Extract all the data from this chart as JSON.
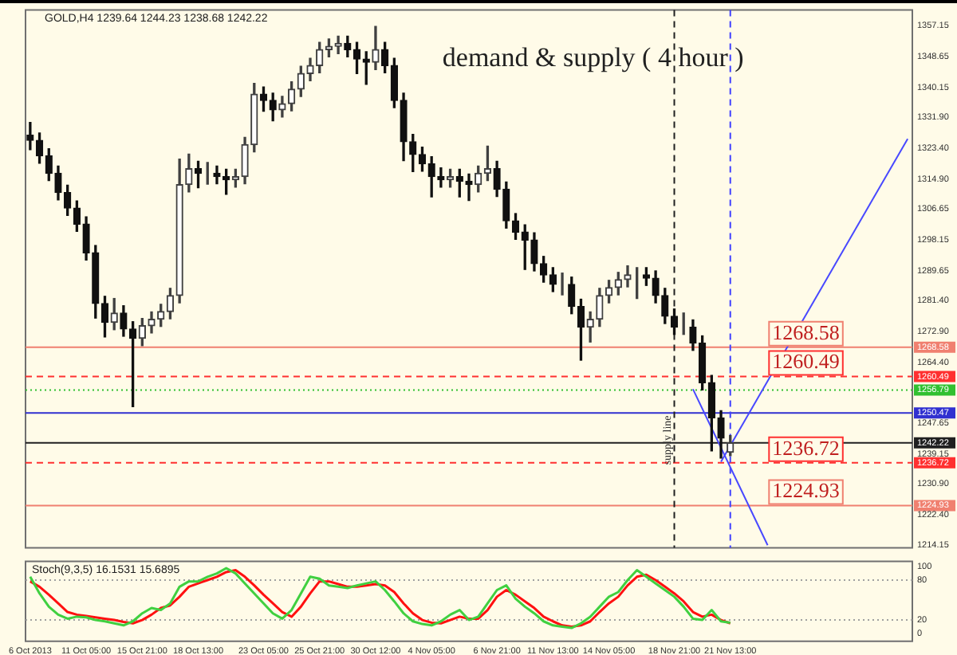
{
  "chart_data": [
    {
      "type": "candlestick",
      "title": "demand & supply ( 4 hour )",
      "annotations": [
        "GOLD,H4 1239.64 1244.23 1238.68 1242.22"
      ],
      "categories": [
        "6 Oct 2013",
        null,
        null,
        null,
        null,
        null,
        "11 Oct 05:00",
        null,
        null,
        null,
        null,
        null,
        "15 Oct 21:00",
        null,
        null,
        null,
        null,
        null,
        "18 Oct 13:00",
        null,
        null,
        null,
        null,
        null,
        null,
        "23 Oct 05:00",
        null,
        null,
        null,
        null,
        null,
        "25 Oct 21:00",
        null,
        null,
        null,
        null,
        null,
        "30 Oct 12:00",
        null,
        null,
        null,
        null,
        null,
        "4 Nov 05:00",
        null,
        null,
        null,
        null,
        null,
        null,
        "6 Nov 21:00",
        null,
        null,
        null,
        null,
        null,
        "11 Nov 13:00",
        null,
        null,
        null,
        null,
        null,
        "14 Nov 05:00",
        null,
        null,
        null,
        null,
        null,
        null,
        "18 Nov 21:00",
        null,
        null,
        null,
        null,
        null,
        "21 Nov 13:00",
        null,
        null,
        null,
        null,
        null,
        null,
        null,
        null,
        null,
        null,
        null,
        null,
        null,
        null,
        null,
        null,
        null,
        null,
        null
      ],
      "ohlc": [
        [
          1327.0,
          1330.5,
          1323.0,
          1325.6
        ],
        [
          1325.6,
          1327.6,
          1319.3,
          1321.3
        ],
        [
          1321.3,
          1323.3,
          1314.5,
          1316.5
        ],
        [
          1316.5,
          1318.5,
          1309.2,
          1311.2
        ],
        [
          1311.2,
          1313.2,
          1304.9,
          1306.9
        ],
        [
          1306.9,
          1308.9,
          1300.5,
          1302.5
        ],
        [
          1302.5,
          1304.5,
          1292.6,
          1294.6
        ],
        [
          1294.6,
          1296.6,
          1276.6,
          1280.6
        ],
        [
          1280.6,
          1282.6,
          1271.4,
          1275.4
        ],
        [
          1275.4,
          1282.0,
          1273.4,
          1278.0
        ],
        [
          1278.0,
          1280.0,
          1271.6,
          1273.6
        ],
        [
          1273.6,
          1275.6,
          1252.2,
          1271.0
        ],
        [
          1271.0,
          1276.5,
          1269.0,
          1274.5
        ],
        [
          1274.5,
          1278.3,
          1272.5,
          1276.3
        ],
        [
          1276.3,
          1280.4,
          1274.3,
          1278.4
        ],
        [
          1278.4,
          1284.8,
          1276.4,
          1282.8
        ],
        [
          1282.8,
          1320.4,
          1280.8,
          1313.4
        ],
        [
          1313.4,
          1321.8,
          1311.4,
          1317.8
        ],
        [
          1317.8,
          1319.8,
          1312.5,
          1316.5
        ],
        [
          1316.5,
          1319.5,
          1313.5,
          1316.5
        ],
        [
          1316.5,
          1318.5,
          1313.6,
          1315.6
        ],
        [
          1315.6,
          1317.6,
          1310.7,
          1314.7
        ],
        [
          1314.7,
          1317.6,
          1312.7,
          1315.6
        ],
        [
          1315.6,
          1326.4,
          1313.6,
          1324.4
        ],
        [
          1324.4,
          1341.3,
          1322.4,
          1338.3
        ],
        [
          1338.3,
          1340.3,
          1333.6,
          1336.6
        ],
        [
          1336.6,
          1338.6,
          1331.0,
          1334.0
        ],
        [
          1334.0,
          1337.7,
          1332.0,
          1335.7
        ],
        [
          1335.7,
          1341.7,
          1333.7,
          1339.7
        ],
        [
          1339.7,
          1346.0,
          1337.7,
          1344.0
        ],
        [
          1344.0,
          1348.2,
          1342.0,
          1346.2
        ],
        [
          1346.2,
          1352.6,
          1344.2,
          1350.6
        ],
        [
          1350.6,
          1353.5,
          1348.6,
          1351.5
        ],
        [
          1351.5,
          1354.3,
          1349.5,
          1352.3
        ],
        [
          1352.3,
          1354.3,
          1348.6,
          1350.6
        ],
        [
          1350.6,
          1352.6,
          1344.0,
          1348.0
        ],
        [
          1348.0,
          1350.0,
          1341.0,
          1347.1
        ],
        [
          1347.1,
          1357.0,
          1345.1,
          1350.6
        ],
        [
          1350.6,
          1352.6,
          1344.2,
          1346.2
        ],
        [
          1346.2,
          1348.2,
          1334.6,
          1336.6
        ],
        [
          1336.6,
          1338.6,
          1320.0,
          1325.2
        ],
        [
          1325.2,
          1327.2,
          1317.0,
          1321.7
        ],
        [
          1321.7,
          1323.7,
          1317.1,
          1319.1
        ],
        [
          1319.1,
          1321.1,
          1310.0,
          1315.6
        ],
        [
          1315.6,
          1318.0,
          1312.7,
          1314.7
        ],
        [
          1314.7,
          1317.6,
          1312.7,
          1315.6
        ],
        [
          1315.6,
          1317.6,
          1310.0,
          1314.3
        ],
        [
          1314.3,
          1316.3,
          1309.0,
          1313.4
        ],
        [
          1313.4,
          1318.5,
          1311.4,
          1316.5
        ],
        [
          1316.5,
          1324.0,
          1314.5,
          1317.8
        ],
        [
          1317.8,
          1319.8,
          1310.1,
          1312.1
        ],
        [
          1312.1,
          1314.1,
          1301.4,
          1303.4
        ],
        [
          1303.4,
          1305.4,
          1298.3,
          1300.3
        ],
        [
          1300.3,
          1302.3,
          1290.0,
          1298.1
        ],
        [
          1298.1,
          1300.1,
          1289.6,
          1291.6
        ],
        [
          1291.6,
          1293.6,
          1286.5,
          1288.5
        ],
        [
          1288.5,
          1290.5,
          1283.9,
          1285.9
        ],
        [
          1285.9,
          1289.0,
          1283.0,
          1285.9
        ],
        [
          1285.9,
          1287.9,
          1277.8,
          1279.8
        ],
        [
          1279.8,
          1281.8,
          1265.0,
          1274.1
        ],
        [
          1274.1,
          1278.3,
          1270.0,
          1276.3
        ],
        [
          1276.3,
          1284.8,
          1274.3,
          1282.8
        ],
        [
          1282.8,
          1287.0,
          1280.8,
          1285.0
        ],
        [
          1285.0,
          1289.2,
          1283.0,
          1287.2
        ],
        [
          1287.2,
          1291.0,
          1285.2,
          1288.5
        ],
        [
          1288.5,
          1290.5,
          1282.0,
          1288.5
        ],
        [
          1288.5,
          1290.5,
          1285.6,
          1287.6
        ],
        [
          1287.6,
          1289.6,
          1280.8,
          1282.8
        ],
        [
          1282.8,
          1284.8,
          1275.1,
          1277.1
        ],
        [
          1277.1,
          1279.1,
          1272.1,
          1274.1
        ],
        [
          1274.1,
          1278.0,
          1272.1,
          1274.1
        ],
        [
          1274.1,
          1276.1,
          1267.7,
          1269.7
        ],
        [
          1269.7,
          1271.7,
          1256.8,
          1258.8
        ],
        [
          1258.8,
          1260.8,
          1240.0,
          1249.1
        ],
        [
          1249.1,
          1251.1,
          1238.0,
          1243.5
        ],
        [
          1239.64,
          1244.23,
          1238.68,
          1242.22
        ],
        null,
        null,
        null,
        null,
        null,
        null,
        null,
        null,
        null,
        null,
        null,
        null,
        null,
        null,
        null,
        null,
        null,
        null,
        null
      ],
      "series": [
        {
          "type": "line",
          "color": "#4848ff",
          "values": [
            null,
            null,
            null,
            null,
            null,
            null,
            null,
            null,
            null,
            null,
            null,
            null,
            null,
            null,
            null,
            null,
            null,
            null,
            null,
            null,
            null,
            null,
            null,
            null,
            null,
            null,
            null,
            null,
            null,
            null,
            null,
            null,
            null,
            null,
            null,
            null,
            null,
            null,
            null,
            null,
            null,
            null,
            null,
            null,
            null,
            null,
            null,
            null,
            null,
            null,
            null,
            null,
            null,
            null,
            null,
            null,
            null,
            null,
            null,
            null,
            null,
            null,
            null,
            null,
            null,
            null,
            null,
            null,
            null,
            null,
            null,
            null,
            null,
            null,
            1237.0,
            null,
            null,
            null,
            null,
            null,
            null,
            null,
            null,
            null,
            null,
            null,
            null,
            null,
            null,
            null,
            null,
            null,
            null,
            null,
            1326.0
          ]
        },
        {
          "type": "line",
          "color": "#4848ff",
          "values": [
            null,
            null,
            null,
            null,
            null,
            null,
            null,
            null,
            null,
            null,
            null,
            null,
            null,
            null,
            null,
            null,
            null,
            null,
            null,
            null,
            null,
            null,
            null,
            null,
            null,
            null,
            null,
            null,
            null,
            null,
            null,
            null,
            null,
            null,
            null,
            null,
            null,
            null,
            null,
            null,
            null,
            null,
            null,
            null,
            null,
            null,
            null,
            null,
            null,
            null,
            null,
            null,
            null,
            null,
            null,
            null,
            null,
            null,
            null,
            null,
            null,
            null,
            null,
            null,
            null,
            null,
            null,
            null,
            null,
            null,
            null,
            1257.0,
            null,
            null,
            null,
            null,
            null,
            null,
            null,
            1214.0,
            null,
            null,
            null,
            null,
            null,
            null,
            null,
            null,
            null,
            null,
            null,
            null,
            null,
            null,
            null
          ]
        }
      ],
      "ylim": [
        1213.3,
        1361.5
      ],
      "yticks": [
        1357.15,
        1348.65,
        1340.15,
        {
          "value": 1331.9,
          "label": "1331.90"
        },
        {
          "value": 1323.4,
          "label": "1323.40"
        },
        {
          "value": 1314.9,
          "label": "1314.90"
        },
        1306.65,
        1298.15,
        1289.65,
        {
          "value": 1281.4,
          "label": "1281.40"
        },
        {
          "value": 1272.9,
          "label": "1272.90"
        },
        {
          "value": 1264.4,
          "label": "1264.40"
        },
        1247.65,
        1239.15,
        {
          "value": 1230.9,
          "label": "1230.90"
        },
        {
          "value": 1222.4,
          "label": "1222.40"
        },
        1214.15,
        1268.58,
        1260.49,
        1256.79,
        1250.47,
        1242.22,
        1236.72,
        1224.93
      ],
      "tick_labels": "y",
      "ref_lines": [
        {
          "axis": "y",
          "value": 1268.58,
          "label": "1268.58",
          "color": "#f08070",
          "line_style": "solid"
        },
        {
          "axis": "y",
          "value": 1260.49,
          "label": "1260.49",
          "color": "#ff3030",
          "line_style": "dashed"
        },
        {
          "axis": "y",
          "value": 1256.79,
          "color": "#30c030",
          "line_style": "dotted"
        },
        {
          "axis": "y",
          "value": 1250.47,
          "color": "#3030d0",
          "line_style": "solid"
        },
        {
          "axis": "y",
          "value": 1242.22,
          "color": "#202020",
          "line_style": "solid"
        },
        {
          "axis": "y",
          "value": 1236.72,
          "label": "1236.72",
          "color": "#ff3030",
          "line_style": "dashed"
        },
        {
          "axis": "y",
          "value": 1224.93,
          "label": "1224.93",
          "color": "#f08070",
          "line_style": "solid"
        },
        {
          "axis": "x",
          "value": "18 Nov 21:00",
          "label": "supply line",
          "color": "#202020",
          "line_style": "dashed"
        },
        {
          "axis": "x",
          "value": "21 Nov 13:00",
          "color": "#4040ff",
          "line_style": "dashed"
        }
      ]
    },
    {
      "type": "line",
      "title": "Stoch(9,3,5) 16.1531 15.6895",
      "categories": [
        "6 Oct 2013",
        null,
        null,
        null,
        null,
        null,
        "11 Oct 05:00",
        null,
        null,
        null,
        null,
        null,
        "15 Oct 21:00",
        null,
        null,
        null,
        null,
        null,
        "18 Oct 13:00",
        null,
        null,
        null,
        null,
        null,
        null,
        "23 Oct 05:00",
        null,
        null,
        null,
        null,
        null,
        "25 Oct 21:00",
        null,
        null,
        null,
        null,
        null,
        "30 Oct 12:00",
        null,
        null,
        null,
        null,
        null,
        "4 Nov 05:00",
        null,
        null,
        null,
        null,
        null,
        null,
        "6 Nov 21:00",
        null,
        null,
        null,
        null,
        null,
        "11 Nov 13:00",
        null,
        null,
        null,
        null,
        null,
        "14 Nov 05:00",
        null,
        null,
        null,
        null,
        null,
        null,
        "18 Nov 21:00",
        null,
        null,
        null,
        null,
        null,
        "21 Nov 13:00",
        null,
        null,
        null,
        null,
        null,
        null,
        null,
        null,
        null,
        null,
        null,
        null,
        null,
        null,
        null,
        null,
        null,
        null,
        null
      ],
      "series": [
        {
          "color": "#40d040",
          "values": [
            85,
            60,
            40,
            28,
            22,
            25,
            24,
            20,
            18,
            15,
            12,
            18,
            30,
            38,
            35,
            45,
            70,
            78,
            78,
            85,
            90,
            98,
            90,
            75,
            60,
            45,
            30,
            22,
            35,
            60,
            85,
            82,
            72,
            70,
            68,
            72,
            75,
            78,
            65,
            48,
            30,
            18,
            14,
            12,
            18,
            28,
            35,
            20,
            25,
            45,
            65,
            72,
            52,
            40,
            30,
            18,
            12,
            10,
            8,
            15,
            25,
            40,
            55,
            62,
            80,
            95,
            85,
            75,
            65,
            55,
            40,
            22,
            20,
            35,
            18,
            16,
            null,
            null,
            null,
            null,
            null,
            null,
            null,
            null,
            null,
            null,
            null,
            null,
            null,
            null,
            null,
            null,
            null,
            null,
            null
          ]
        },
        {
          "color": "#ff1010",
          "values": [
            78,
            70,
            58,
            45,
            32,
            28,
            26,
            24,
            22,
            20,
            17,
            15,
            20,
            28,
            38,
            42,
            55,
            70,
            75,
            80,
            85,
            92,
            95,
            85,
            72,
            58,
            45,
            32,
            25,
            40,
            60,
            78,
            78,
            74,
            70,
            70,
            72,
            74,
            72,
            62,
            45,
            30,
            20,
            16,
            15,
            20,
            25,
            22,
            22,
            35,
            55,
            65,
            58,
            48,
            38,
            25,
            18,
            12,
            10,
            12,
            18,
            32,
            45,
            55,
            72,
            85,
            88,
            80,
            70,
            60,
            48,
            32,
            25,
            28,
            20,
            15,
            null,
            null,
            null,
            null,
            null,
            null,
            null,
            null,
            null,
            null,
            null,
            null,
            null,
            null,
            null,
            null,
            null,
            null,
            null
          ]
        }
      ],
      "ylim": [
        -12,
        108
      ],
      "yticks": [
        0,
        20,
        80,
        100
      ],
      "ref_lines": [
        {
          "axis": "y",
          "value": 20,
          "color": "#a0a0a0",
          "line_style": "dotted"
        },
        {
          "axis": "y",
          "value": 80,
          "color": "#a0a0a0",
          "line_style": "dotted"
        }
      ]
    }
  ]
}
